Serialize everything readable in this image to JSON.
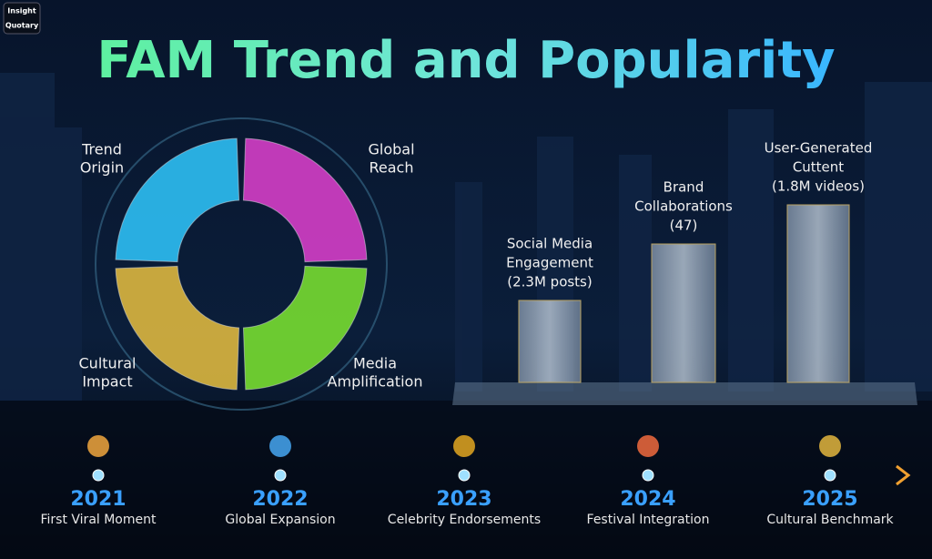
{
  "logo": {
    "lines": [
      "Insight",
      "Quotary"
    ]
  },
  "title": "FAM Trend and Popularity",
  "ring": {
    "segments": [
      {
        "lines": [
          "Trend",
          "Origin"
        ]
      },
      {
        "lines": [
          "Global",
          "Reach"
        ]
      },
      {
        "lines": [
          "Cultural",
          "Impact"
        ]
      },
      {
        "lines": [
          "Media",
          "Amplification"
        ]
      }
    ]
  },
  "bars": [
    {
      "lines": [
        "Social Media",
        "Engagement",
        "(2.3M posts)"
      ]
    },
    {
      "lines": [
        "Brand",
        "Collaborations",
        "(47)"
      ]
    },
    {
      "lines": [
        "User-Generated",
        "Cuttent",
        "(1.8M videos)"
      ]
    }
  ],
  "timeline": [
    {
      "year": "2021",
      "label": "First Viral Moment"
    },
    {
      "year": "2022",
      "label": "Global Expansion"
    },
    {
      "year": "2023",
      "label": "Celebrity Endorsements"
    },
    {
      "year": "2024",
      "label": "Festival Integration"
    },
    {
      "year": "2025",
      "label": "Cultural Benchmark"
    }
  ]
}
